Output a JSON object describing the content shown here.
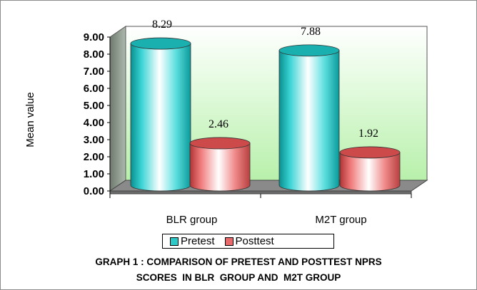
{
  "chart_data": {
    "type": "bar",
    "categories": [
      "BLR group",
      "M2T group"
    ],
    "series": [
      {
        "name": "Pretest",
        "values": [
          8.29,
          7.88
        ],
        "color": "#2cc9c9"
      },
      {
        "name": "Posttest",
        "values": [
          2.46,
          1.92
        ],
        "color": "#e86a6a"
      }
    ],
    "data_labels": [
      [
        "8.29",
        "7.88"
      ],
      [
        "2.46",
        "1.92"
      ]
    ],
    "ylabel": "Mean value",
    "xlabel": "",
    "ylim": [
      0,
      9
    ],
    "yticks": [
      "0.00",
      "1.00",
      "2.00",
      "3.00",
      "4.00",
      "5.00",
      "6.00",
      "7.00",
      "8.00",
      "9.00"
    ],
    "legend_position": "bottom",
    "grid": false,
    "style": "3d cylinder",
    "wall_color": "#ccf5c4",
    "floor_color": "#8a8a8a"
  },
  "caption": {
    "line1": "GRAPH 1 : COMPARISON OF PRETEST AND POSTTEST NPRS",
    "line2": "SCORES  IN BLR  GROUP AND  M2T GROUP"
  }
}
